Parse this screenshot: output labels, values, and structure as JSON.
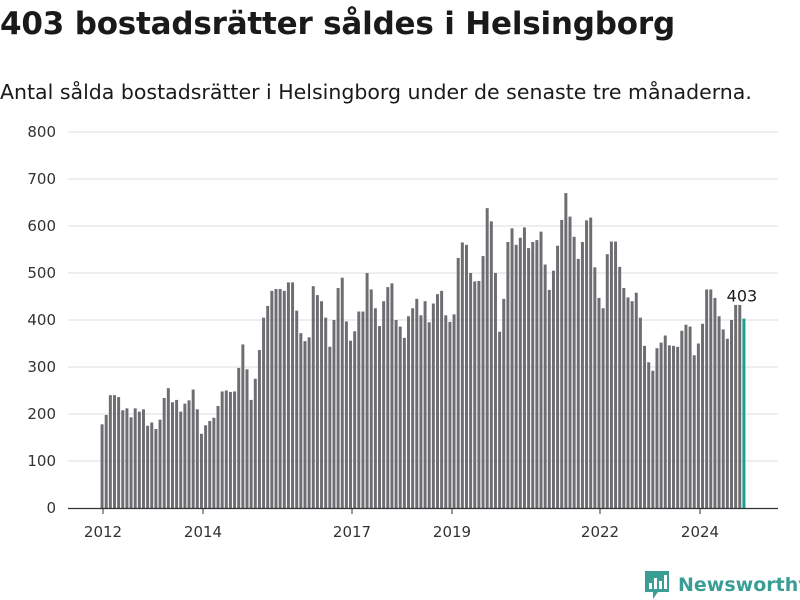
{
  "title": "403 bostadsrätter såldes i Helsingborg",
  "subtitle": "Antal sålda bostadsrätter i Helsingborg under de senaste tre månaderna.",
  "logo": {
    "text": "Newsworthy",
    "icon": "newsworthy-chart-icon"
  },
  "colors": {
    "bar": "#6e6d72",
    "highlight": "#1a9e8f",
    "grid": "#dddddd",
    "axis": "#333333",
    "brand": "#3a9e94"
  },
  "chart_data": {
    "type": "bar",
    "ylim": [
      0,
      800
    ],
    "yticks": [
      0,
      100,
      200,
      300,
      400,
      500,
      600,
      700,
      800
    ],
    "xticks": [
      "2012",
      "2014",
      "2017",
      "2019",
      "2022",
      "2024"
    ],
    "grid": true,
    "highlight_last": true,
    "annotation": "403",
    "values": [
      178,
      198,
      240,
      240,
      236,
      208,
      212,
      193,
      212,
      205,
      210,
      175,
      182,
      168,
      188,
      234,
      255,
      225,
      230,
      205,
      222,
      229,
      252,
      210,
      158,
      176,
      185,
      192,
      217,
      248,
      250,
      247,
      248,
      298,
      348,
      295,
      230,
      275,
      336,
      405,
      430,
      462,
      466,
      466,
      462,
      480,
      480,
      420,
      372,
      355,
      363,
      472,
      453,
      440,
      405,
      343,
      400,
      468,
      490,
      397,
      356,
      376,
      418,
      418,
      500,
      465,
      425,
      387,
      440,
      470,
      478,
      400,
      386,
      362,
      408,
      425,
      445,
      410,
      440,
      395,
      435,
      455,
      462,
      410,
      396,
      412,
      532,
      565,
      560,
      500,
      482,
      483,
      536,
      638,
      610,
      500,
      375,
      445,
      566,
      595,
      560,
      575,
      597,
      553,
      566,
      570,
      588,
      518,
      464,
      505,
      558,
      613,
      670,
      620,
      577,
      530,
      566,
      612,
      618,
      512,
      447,
      425,
      540,
      567,
      567,
      513,
      468,
      448,
      440,
      458,
      405,
      345,
      310,
      292,
      340,
      352,
      367,
      346,
      345,
      343,
      377,
      390,
      386,
      325,
      350,
      392,
      465,
      465,
      447,
      408,
      380,
      360,
      400,
      432,
      432,
      403
    ]
  }
}
